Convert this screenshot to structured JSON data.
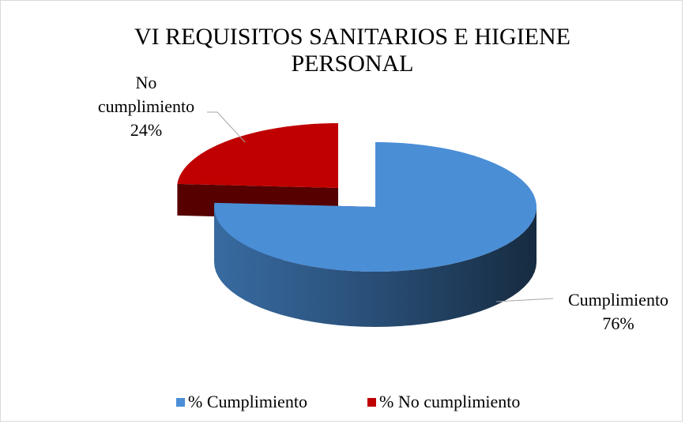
{
  "chart_data": {
    "type": "pie",
    "title": "VI REQUISITOS SANITARIOS E HIGIENE PERSONAL",
    "categories": [
      "Cumplimiento",
      "No cumplimiento"
    ],
    "values": [
      76,
      24
    ],
    "value_labels": [
      "76%",
      "24%"
    ],
    "legend": [
      "% Cumplimiento",
      "% No cumplimiento"
    ],
    "colors": [
      "#4a8ed6",
      "#c00000"
    ]
  }
}
